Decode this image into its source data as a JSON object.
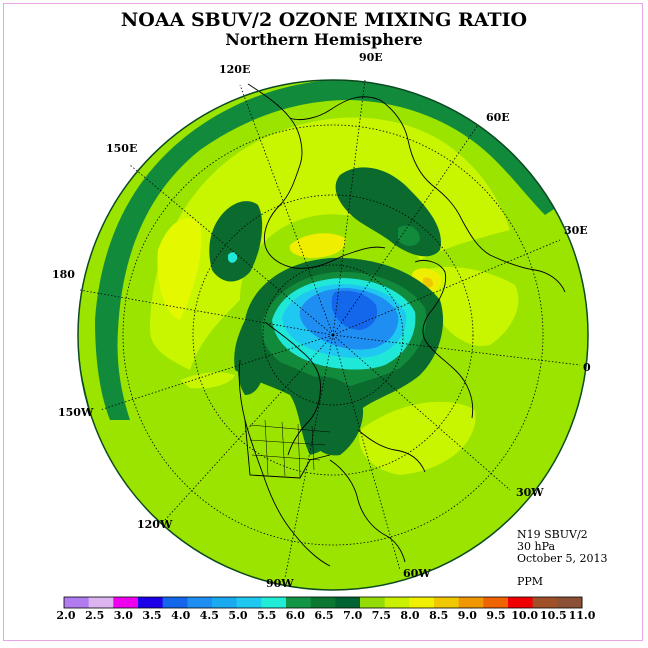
{
  "title": "NOAA SBUV/2 OZONE MIXING RATIO",
  "subtitle": "Northern Hemisphere",
  "info": {
    "instrument": "N19 SBUV/2",
    "pressure": "30 hPa",
    "date": "October 5, 2013",
    "units": "PPM"
  },
  "longitude_labels": [
    {
      "id": "lon-90e",
      "text": "90E"
    },
    {
      "id": "lon-60e",
      "text": "60E"
    },
    {
      "id": "lon-30e",
      "text": "30E"
    },
    {
      "id": "lon-0",
      "text": "0"
    },
    {
      "id": "lon-30w",
      "text": "30W"
    },
    {
      "id": "lon-60w",
      "text": "60W"
    },
    {
      "id": "lon-90w",
      "text": "90W"
    },
    {
      "id": "lon-120w",
      "text": "120W"
    },
    {
      "id": "lon-150w",
      "text": "150W"
    },
    {
      "id": "lon-180",
      "text": "180"
    },
    {
      "id": "lon-150e",
      "text": "150E"
    },
    {
      "id": "lon-120e",
      "text": "120E"
    }
  ],
  "colorbar": {
    "labels": [
      "2.0",
      "2.5",
      "3.0",
      "3.5",
      "4.0",
      "4.5",
      "5.0",
      "5.5",
      "6.0",
      "6.5",
      "7.0",
      "7.5",
      "8.0",
      "8.5",
      "9.0",
      "9.5",
      "10.0",
      "10.5",
      "11.0"
    ],
    "colors": [
      "#b07cf0",
      "#dcb4f0",
      "#ee00ee",
      "#1c00e8",
      "#1466ea",
      "#1e8ef2",
      "#19aaf0",
      "#1ec8f0",
      "#20ecd8",
      "#129646",
      "#0a7830",
      "#006432",
      "#94dc08",
      "#c8f000",
      "#f0f000",
      "#f0c800",
      "#f09600",
      "#f06400",
      "#f00000",
      "#a05028",
      "#8c5037"
    ]
  },
  "map_colors": {
    "ocean_ring": "#9ae400",
    "light_yellow_green": "#c8f500",
    "yellow": "#f0ee00",
    "orange": "#f0c800",
    "dark_green": "#0b6a2e",
    "mid_green": "#118a3c",
    "cyan": "#20e8d8",
    "light_blue": "#1ec8f0",
    "blue": "#1e8ef2",
    "deep_blue": "#1466ea"
  }
}
